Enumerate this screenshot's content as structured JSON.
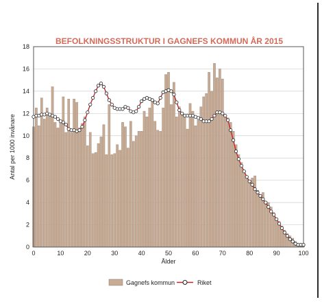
{
  "chart_data": {
    "type": "bar",
    "title": "BEFOLKNINGSSTRUKTUR I GAGNEFS KOMMUN ÅR 2015",
    "xlabel": "Ålder",
    "ylabel": "Antal per 1000 invånare",
    "xlim": [
      0,
      100
    ],
    "ylim": [
      0,
      18
    ],
    "x_ticks": [
      0,
      10,
      20,
      30,
      40,
      50,
      60,
      70,
      80,
      90,
      100
    ],
    "y_ticks": [
      0,
      2,
      4,
      6,
      8,
      10,
      12,
      14,
      16,
      18
    ],
    "grid": true,
    "legend_position": "bottom",
    "series": [
      {
        "name": "Gagnefs kommun",
        "type": "bar",
        "color": "#c8ab94",
        "x": [
          0,
          1,
          2,
          3,
          4,
          5,
          6,
          7,
          8,
          9,
          10,
          11,
          12,
          13,
          14,
          15,
          16,
          17,
          18,
          19,
          20,
          21,
          22,
          23,
          24,
          25,
          26,
          27,
          28,
          29,
          30,
          31,
          32,
          33,
          34,
          35,
          36,
          37,
          38,
          39,
          40,
          41,
          42,
          43,
          44,
          45,
          46,
          47,
          48,
          49,
          50,
          51,
          52,
          53,
          54,
          55,
          56,
          57,
          58,
          59,
          60,
          61,
          62,
          63,
          64,
          65,
          66,
          67,
          68,
          69,
          70,
          71,
          72,
          73,
          74,
          75,
          76,
          77,
          78,
          79,
          80,
          81,
          82,
          83,
          84,
          85,
          86,
          87,
          88,
          89,
          90,
          91,
          92,
          93,
          94,
          95,
          96,
          97,
          98,
          99,
          100
        ],
        "values": [
          10.8,
          12.5,
          10.9,
          13.4,
          11.5,
          12.5,
          11.9,
          14.4,
          11.2,
          10.7,
          11.3,
          13.5,
          10.3,
          13.3,
          10.3,
          13.3,
          13.0,
          10.7,
          11.1,
          11.7,
          9.1,
          10.3,
          8.4,
          8.5,
          9.3,
          9.9,
          11.0,
          8.3,
          12.8,
          8.3,
          8.4,
          9.2,
          8.7,
          11.2,
          10.8,
          8.9,
          11.3,
          9.5,
          10.0,
          10.4,
          10.4,
          12.2,
          11.7,
          12.5,
          13.2,
          11.3,
          10.5,
          10.4,
          12.5,
          15.5,
          15.7,
          12.8,
          14.8,
          11.7,
          12.6,
          12.0,
          11.7,
          10.6,
          12.9,
          12.2,
          10.9,
          11.4,
          12.6,
          13.5,
          13.8,
          15.7,
          14.0,
          16.5,
          15.2,
          16.0,
          15.1,
          11.8,
          11.6,
          11.2,
          10.4,
          9.2,
          8.3,
          7.6,
          6.9,
          6.3,
          6.0,
          6.2,
          6.4,
          5.1,
          4.7,
          4.9,
          4.1,
          4.0,
          3.6,
          3.1,
          2.5,
          2.3,
          1.9,
          1.5,
          1.2,
          1.0,
          0.8,
          0.5,
          0.3,
          0.2,
          0.2
        ]
      },
      {
        "name": "Riket",
        "type": "line",
        "color": "#c0272d",
        "x": [
          0,
          1,
          2,
          3,
          4,
          5,
          6,
          7,
          8,
          9,
          10,
          11,
          12,
          13,
          14,
          15,
          16,
          17,
          18,
          19,
          20,
          21,
          22,
          23,
          24,
          25,
          26,
          27,
          28,
          29,
          30,
          31,
          32,
          33,
          34,
          35,
          36,
          37,
          38,
          39,
          40,
          41,
          42,
          43,
          44,
          45,
          46,
          47,
          48,
          49,
          50,
          51,
          52,
          53,
          54,
          55,
          56,
          57,
          58,
          59,
          60,
          61,
          62,
          63,
          64,
          65,
          66,
          67,
          68,
          69,
          70,
          71,
          72,
          73,
          74,
          75,
          76,
          77,
          78,
          79,
          80,
          81,
          82,
          83,
          84,
          85,
          86,
          87,
          88,
          89,
          90,
          91,
          92,
          93,
          94,
          95,
          96,
          97,
          98,
          99,
          100
        ],
        "values": [
          11.7,
          11.8,
          11.8,
          11.9,
          11.9,
          12.0,
          11.9,
          11.8,
          11.7,
          11.5,
          11.3,
          11.2,
          11.0,
          10.6,
          10.5,
          10.5,
          10.4,
          10.5,
          10.8,
          11.4,
          12.1,
          12.8,
          13.4,
          14.0,
          14.5,
          14.7,
          14.4,
          13.8,
          13.2,
          12.8,
          12.5,
          12.4,
          12.4,
          12.4,
          12.6,
          12.5,
          12.2,
          12.1,
          12.2,
          12.6,
          13.1,
          13.3,
          13.4,
          13.3,
          13.2,
          13.0,
          12.9,
          13.4,
          13.9,
          14.0,
          14.1,
          14.0,
          13.7,
          13.0,
          12.3,
          12.0,
          11.8,
          11.8,
          11.8,
          11.8,
          11.7,
          11.6,
          11.5,
          11.3,
          11.3,
          11.3,
          11.5,
          11.8,
          12.1,
          12.1,
          12.0,
          11.8,
          11.4,
          10.5,
          9.6,
          8.6,
          7.9,
          7.3,
          6.8,
          6.3,
          5.9,
          5.6,
          5.2,
          4.9,
          4.6,
          4.3,
          4.0,
          3.6,
          3.2,
          2.9,
          2.5,
          2.1,
          1.7,
          1.3,
          1.0,
          0.7,
          0.5,
          0.3,
          0.2,
          0.2,
          0.2
        ]
      }
    ]
  }
}
